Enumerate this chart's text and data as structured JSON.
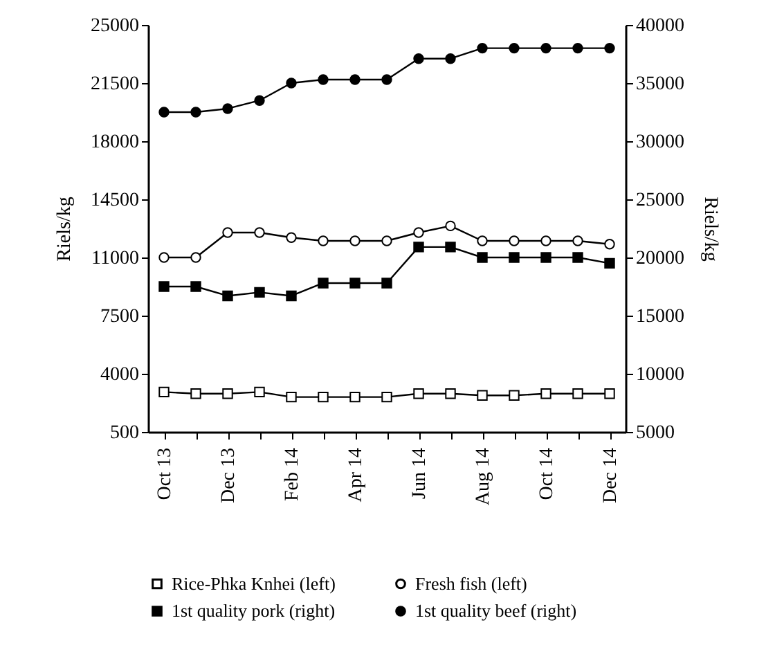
{
  "chart_data": {
    "type": "line",
    "categories": [
      "Oct 13",
      null,
      "Dec 13",
      null,
      "Feb 14",
      null,
      "Apr 14",
      null,
      "Jun 14",
      null,
      "Aug 14",
      null,
      "Oct 14",
      null,
      "Dec 14"
    ],
    "ylabel": "Riels/kg",
    "y2label": "Riels/kg",
    "ylim": [
      500,
      25000
    ],
    "yticks": [
      500,
      4000,
      7500,
      11000,
      14500,
      18000,
      21500,
      25000
    ],
    "y2lim": [
      5000,
      40000
    ],
    "y2ticks": [
      5000,
      10000,
      15000,
      20000,
      25000,
      30000,
      35000,
      40000
    ],
    "grid": false,
    "legend": "bottom",
    "line_style": "solid",
    "series": [
      {
        "name": "Rice-Phka Knhei (left)",
        "color": "#000000",
        "marker": "square",
        "values": [
          2900,
          2800,
          2800,
          2900,
          2600,
          2600,
          2600,
          2600,
          2800,
          2800,
          2700,
          2700,
          2800,
          2800,
          2800
        ]
      },
      {
        "name": "Fresh fish (left)",
        "color": "#000000",
        "marker": "circle",
        "values": [
          11000,
          11000,
          12500,
          12500,
          12200,
          12000,
          12000,
          12000,
          12500,
          12900,
          12000,
          12000,
          12000,
          12000,
          11800
        ]
      },
      {
        "name": "1st quality pork (right)",
        "color": "#000000",
        "marker": "square",
        "axis": "y2",
        "values": [
          17500,
          17500,
          16700,
          17000,
          16700,
          17800,
          17800,
          17800,
          20900,
          20900,
          20000,
          20000,
          20000,
          20000,
          19500
        ]
      },
      {
        "name": "1st quality beef (right)",
        "color": "#000000",
        "marker": "circle",
        "axis": "y2",
        "values": [
          32500,
          32500,
          32800,
          33500,
          35000,
          35300,
          35300,
          35300,
          37100,
          37100,
          38000,
          38000,
          38000,
          38000,
          38000
        ]
      }
    ]
  }
}
